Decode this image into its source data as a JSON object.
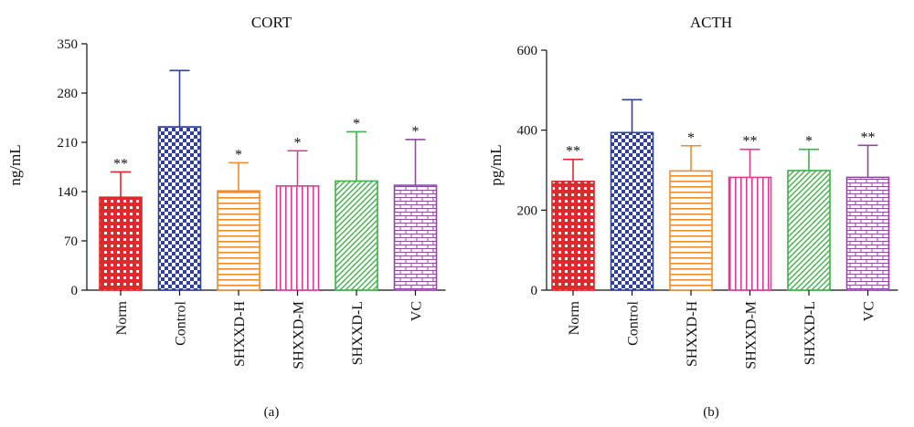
{
  "chart_data": [
    {
      "type": "bar",
      "title": "CORT",
      "ylabel": "ng/mL",
      "xlabel": "",
      "panel_label": "(a)",
      "categories": [
        "Norm",
        "Control",
        "SHXXD-H",
        "SHXXD-M",
        "SHXXD-L",
        "VC"
      ],
      "values": [
        132,
        232,
        141,
        148,
        155,
        149
      ],
      "error": [
        36,
        80,
        40,
        50,
        70,
        65
      ],
      "significance": [
        "**",
        "",
        "*",
        "*",
        "*",
        "*"
      ],
      "ylim": [
        0,
        350
      ],
      "yticks": [
        0,
        70,
        140,
        210,
        280,
        350
      ],
      "colors": [
        "#e0292c",
        "#2e3f9e",
        "#f08a2a",
        "#df3a96",
        "#3fb04a",
        "#8e4a9e"
      ],
      "patterns": [
        "grid",
        "checker",
        "hlines",
        "vlines",
        "diag",
        "brick"
      ],
      "grid": false,
      "legend": "none"
    },
    {
      "type": "bar",
      "title": "ACTH",
      "ylabel": "pg/mL",
      "xlabel": "",
      "panel_label": "(b)",
      "categories": [
        "Norm",
        "Control",
        "SHXXD-H",
        "SHXXD-M",
        "SHXXD-L",
        "VC"
      ],
      "values": [
        272,
        394,
        298,
        282,
        299,
        282
      ],
      "error": [
        55,
        82,
        63,
        70,
        53,
        80
      ],
      "significance": [
        "**",
        "",
        "*",
        "**",
        "*",
        "**"
      ],
      "ylim": [
        0,
        600
      ],
      "yticks": [
        0,
        200,
        400,
        600
      ],
      "colors": [
        "#e0292c",
        "#2e3f9e",
        "#f08a2a",
        "#df3a96",
        "#3fb04a",
        "#8e4a9e"
      ],
      "patterns": [
        "grid",
        "checker",
        "hlines",
        "vlines",
        "diag",
        "brick"
      ],
      "grid": false,
      "legend": "none"
    }
  ]
}
